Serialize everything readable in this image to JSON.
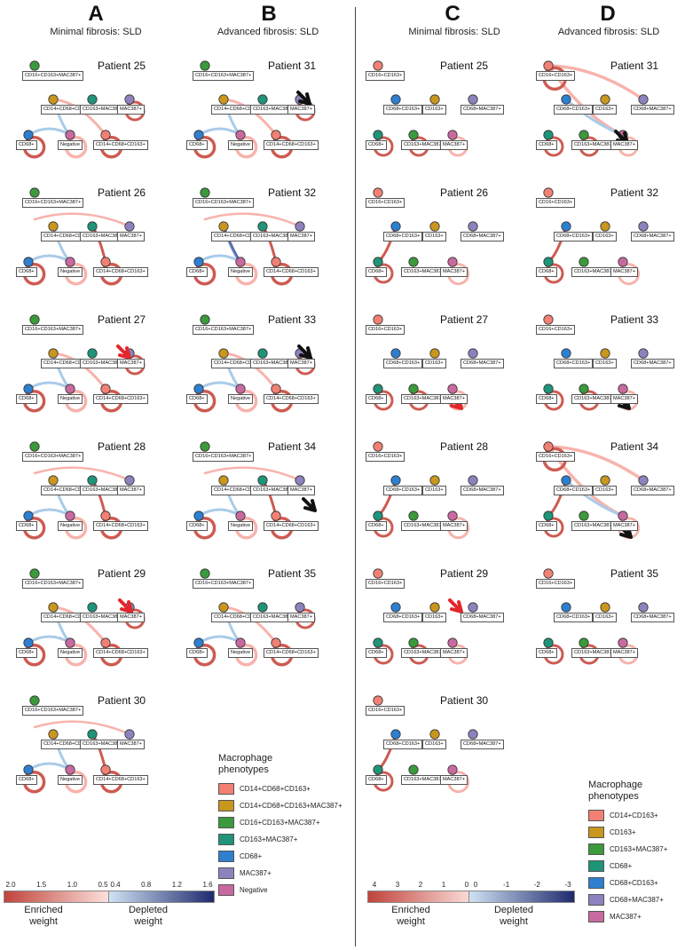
{
  "panels": [
    {
      "letter": "A",
      "subtitle": "Minimal fibrosis: SLD"
    },
    {
      "letter": "B",
      "subtitle": "Advanced fibrosis: SLD"
    },
    {
      "letter": "C",
      "subtitle": "Minimal fibrosis: SLD"
    },
    {
      "letter": "D",
      "subtitle": "Advanced fibrosis: SLD"
    }
  ],
  "patients": {
    "A": [
      "Patient 25",
      "Patient 26",
      "Patient 27",
      "Patient 28",
      "Patient 29",
      "Patient 30"
    ],
    "B": [
      "Patient 31",
      "Patient 32",
      "Patient 33",
      "Patient 34",
      "Patient 35"
    ],
    "C": [
      "Patient 25",
      "Patient 26",
      "Patient 27",
      "Patient 28",
      "Patient 29",
      "Patient 30"
    ],
    "D": [
      "Patient 31",
      "Patient 32",
      "Patient 33",
      "Patient 34",
      "Patient 35"
    ]
  },
  "nodes_left": [
    "CD16+CD163+MAC387+",
    "CD14+CD68+CD163+MAC387+",
    "CD163+MAC387+",
    "MAC387+",
    "CD68+",
    "Negative",
    "CD14+CD68+CD163+"
  ],
  "nodes_right": [
    "CD16+CD163+",
    "CD68+CD163+",
    "CD163+",
    "CD68+MAC387+",
    "CD68+",
    "CD163+MAC387+",
    "MAC387+"
  ],
  "legend_left": {
    "title": "Macrophage phenotypes",
    "items": [
      {
        "label": "CD14+CD68+CD163+",
        "color": "#f28074"
      },
      {
        "label": "CD14+CD68+CD163+MAC387+",
        "color": "#c9961e"
      },
      {
        "label": "CD16+CD163+MAC387+",
        "color": "#3b9a3b"
      },
      {
        "label": "CD163+MAC387+",
        "color": "#1f9478"
      },
      {
        "label": "CD68+",
        "color": "#2e7fd0"
      },
      {
        "label": "MAC387+",
        "color": "#8e82be"
      },
      {
        "label": "Negative",
        "color": "#c86aa0"
      }
    ]
  },
  "legend_right": {
    "title": "Macrophage phenotypes",
    "items": [
      {
        "label": "CD14+CD163+",
        "color": "#f28074"
      },
      {
        "label": "CD163+",
        "color": "#c9961e"
      },
      {
        "label": "CD163+MAC387+",
        "color": "#3b9a3b"
      },
      {
        "label": "CD68+",
        "color": "#1f9478"
      },
      {
        "label": "CD68+CD163+",
        "color": "#2e7fd0"
      },
      {
        "label": "CD68+MAC387+",
        "color": "#8e82be"
      },
      {
        "label": "MAC387+",
        "color": "#c86aa0"
      }
    ]
  },
  "scales": {
    "left_enriched": {
      "ticks": [
        "2.0",
        "1.5",
        "1.0",
        "0.5"
      ],
      "title": "Enriched weight",
      "from": "#c0443c",
      "to": "#fde0dc"
    },
    "left_depleted": {
      "ticks": [
        "0.4",
        "0.8",
        "1.2",
        "1.6"
      ],
      "title": "Depleted weight",
      "from": "#cfe2f3",
      "to": "#1f2a6e"
    },
    "right_enriched": {
      "ticks": [
        "4",
        "3",
        "2",
        "1",
        "0"
      ],
      "title": "Enriched weight",
      "from": "#c0443c",
      "to": "#fde0dc"
    },
    "right_depleted": {
      "ticks": [
        "0",
        "-1",
        "-2",
        "-3"
      ],
      "title": "Depleted weight",
      "from": "#cfe2f3",
      "to": "#1f2a6e"
    }
  },
  "colors": {
    "enriched_strong": "#cd5b52",
    "enriched_light": "#f7b3ac",
    "depleted_light": "#a9cbe8",
    "depleted_strong": "#5d6fb0",
    "arrow_red": "#e3262b",
    "arrow_black": "#111111"
  }
}
